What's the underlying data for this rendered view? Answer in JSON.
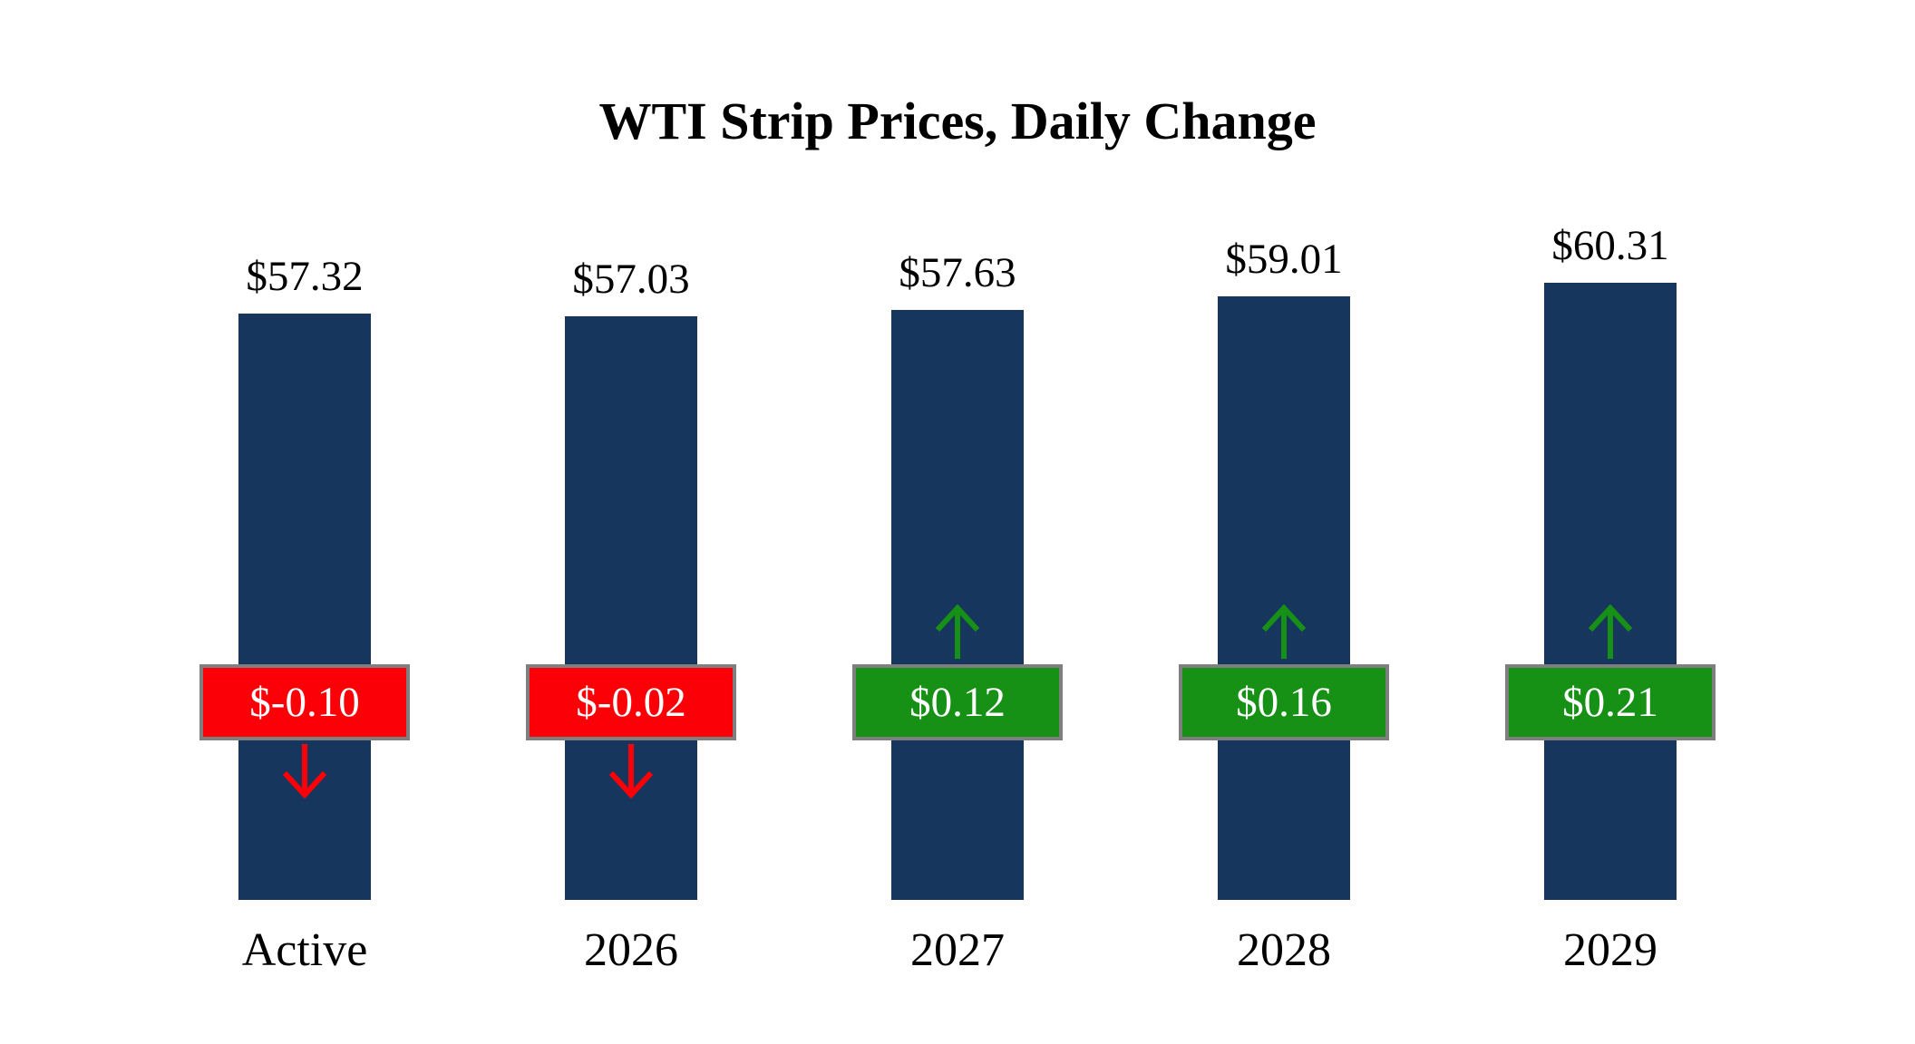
{
  "chart_data": {
    "type": "bar",
    "title": "WTI Strip Prices, Daily Change",
    "categories": [
      "Active",
      "2026",
      "2027",
      "2028",
      "2029"
    ],
    "values": [
      57.32,
      57.03,
      57.63,
      59.01,
      60.31
    ],
    "value_labels": [
      "$57.32",
      "$57.03",
      "$57.63",
      "$59.01",
      "$60.31"
    ],
    "changes": [
      -0.1,
      -0.02,
      0.12,
      0.16,
      0.21
    ],
    "change_labels": [
      "$-0.10",
      "$-0.02",
      "$0.12",
      "$0.16",
      "$0.21"
    ],
    "change_directions": [
      "down",
      "down",
      "up",
      "up",
      "up"
    ],
    "ylim": [
      0,
      62
    ],
    "grid": false,
    "legend": "none",
    "xlabel": "",
    "ylabel": "",
    "bar_color": "#17365d",
    "negative_color": "#fb0107",
    "positive_color": "#169116",
    "badge_border_color": "#7f7f7f"
  }
}
